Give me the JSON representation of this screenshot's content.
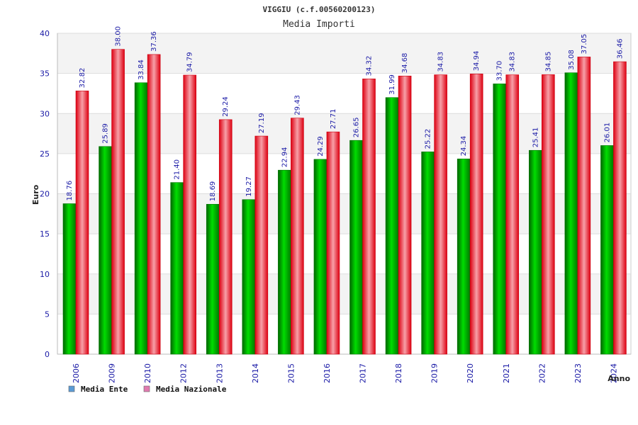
{
  "chart_data": {
    "type": "bar",
    "title": "VIGGIU (c.f.00560200123)",
    "subtitle": "Media Importi",
    "xlabel": "Anno",
    "ylabel": "Euro",
    "ylim": [
      0,
      40
    ],
    "yticks": [
      "0",
      "5",
      "10",
      "15",
      "20",
      "25",
      "30",
      "35",
      "40"
    ],
    "grid": true,
    "legend_position": "bottom-left",
    "categories": [
      "2006",
      "2009",
      "2010",
      "2012",
      "2013",
      "2014",
      "2015",
      "2016",
      "2017",
      "2018",
      "2019",
      "2020",
      "2021",
      "2022",
      "2023",
      "2024"
    ],
    "series": [
      {
        "name": "Media Ente",
        "legend_color": "#5b9bd5",
        "bar_color": "#00b000",
        "values": [
          18.76,
          25.89,
          33.84,
          21.4,
          18.69,
          19.27,
          22.94,
          24.29,
          26.65,
          31.99,
          25.22,
          24.34,
          33.7,
          25.41,
          35.08,
          26.01
        ],
        "labels": [
          "18.76",
          "25.89",
          "33.84",
          "21.40",
          "18.69",
          "19.27",
          "22.94",
          "24.29",
          "26.65",
          "31.99",
          "25.22",
          "24.34",
          "33.70",
          "25.41",
          "35.08",
          "26.01"
        ]
      },
      {
        "name": "Media Nazionale",
        "legend_color": "#e07bb0",
        "bar_color": "#ee1122",
        "values": [
          32.82,
          38.0,
          37.36,
          34.79,
          29.24,
          27.19,
          29.43,
          27.71,
          34.32,
          34.68,
          34.83,
          34.94,
          34.83,
          34.85,
          37.05,
          36.46
        ],
        "labels": [
          "32.82",
          "38.00",
          "37.36",
          "34.79",
          "29.24",
          "27.19",
          "29.43",
          "27.71",
          "34.32",
          "34.68",
          "34.83",
          "34.94",
          "34.83",
          "34.85",
          "37.05",
          "36.46"
        ]
      }
    ]
  }
}
